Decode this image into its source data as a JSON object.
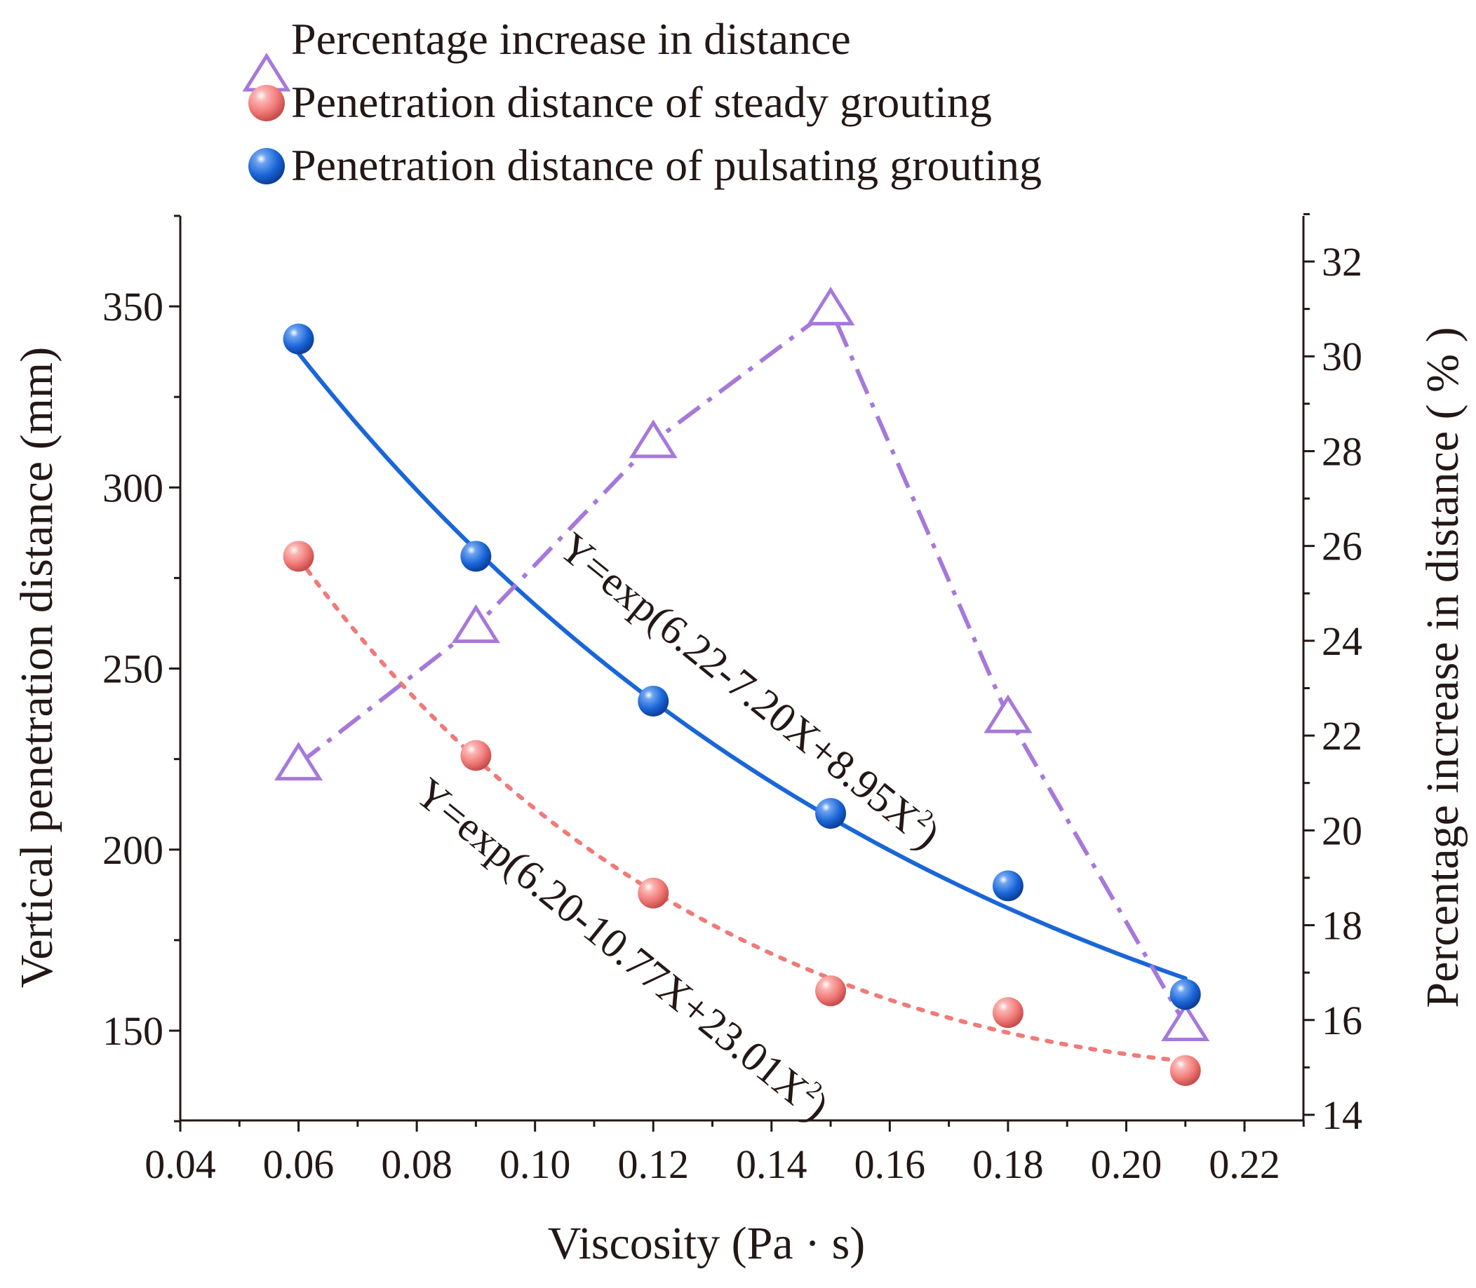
{
  "chart_data": {
    "type": "scatter",
    "xlabel": "Viscosity (Pa · s)",
    "ylabel_left": "Vertical penetration distance (mm)",
    "ylabel_right": "Percentage increase in distance ( % )",
    "xlim": [
      0.04,
      0.23
    ],
    "ylim_left": [
      125,
      375
    ],
    "ylim_right": [
      14,
      33
    ],
    "x_ticks": [
      "0.04",
      "0.06",
      "0.08",
      "0.10",
      "0.12",
      "0.14",
      "0.16",
      "0.18",
      "0.20",
      "0.22"
    ],
    "x_tick_values": [
      0.04,
      0.06,
      0.08,
      0.1,
      0.12,
      0.14,
      0.16,
      0.18,
      0.2,
      0.22
    ],
    "y_left_ticks": [
      "150",
      "200",
      "250",
      "300",
      "350"
    ],
    "y_left_tick_values": [
      150,
      200,
      250,
      300,
      350
    ],
    "y_right_ticks": [
      "14",
      "16",
      "18",
      "20",
      "22",
      "24",
      "26",
      "28",
      "30",
      "32"
    ],
    "y_right_tick_values": [
      14,
      16,
      18,
      20,
      22,
      24,
      26,
      28,
      30,
      32
    ],
    "legend": [
      {
        "label": "Percentage increase in distance",
        "marker": "triangle",
        "color": "#a678db"
      },
      {
        "label": "Penetration distance of steady grouting",
        "marker": "sphere",
        "color": "#f07a78"
      },
      {
        "label": "Penetration distance of pulsating grouting",
        "marker": "sphere",
        "color": "#1a66d8"
      }
    ],
    "series": [
      {
        "name": "Percentage increase in distance",
        "axis": "right",
        "x": [
          0.06,
          0.09,
          0.12,
          0.15,
          0.18,
          0.21
        ],
        "y": [
          21.4,
          24.3,
          28.2,
          31.0,
          22.4,
          15.9
        ]
      },
      {
        "name": "Penetration distance of steady grouting",
        "axis": "left",
        "x": [
          0.06,
          0.09,
          0.12,
          0.15,
          0.18,
          0.21
        ],
        "y": [
          281,
          226,
          188,
          161,
          155,
          139
        ]
      },
      {
        "name": "Penetration distance of pulsating grouting",
        "axis": "left",
        "x": [
          0.06,
          0.09,
          0.12,
          0.15,
          0.18,
          0.21
        ],
        "y": [
          341,
          281,
          241,
          210,
          190,
          160
        ]
      }
    ],
    "fits": [
      {
        "series": "Penetration distance of pulsating grouting",
        "a": 6.22,
        "b": -7.2,
        "c": 8.95,
        "x_range": [
          0.06,
          0.21
        ],
        "equation_main": "Y=exp(6.22-7.20X+8.95X",
        "equation_sup": "2",
        "equation_end": ")"
      },
      {
        "series": "Penetration distance of steady grouting",
        "a": 6.2,
        "b": -10.77,
        "c": 23.01,
        "x_range": [
          0.06,
          0.21
        ],
        "equation_main": "Y=exp(6.20-10.77X+23.01X",
        "equation_sup": "2",
        "equation_end": ")"
      }
    ],
    "colors": {
      "triangle": "#a678db",
      "steady": "#f07a78",
      "pulsating": "#1a66d8",
      "axis": "#231816"
    }
  }
}
